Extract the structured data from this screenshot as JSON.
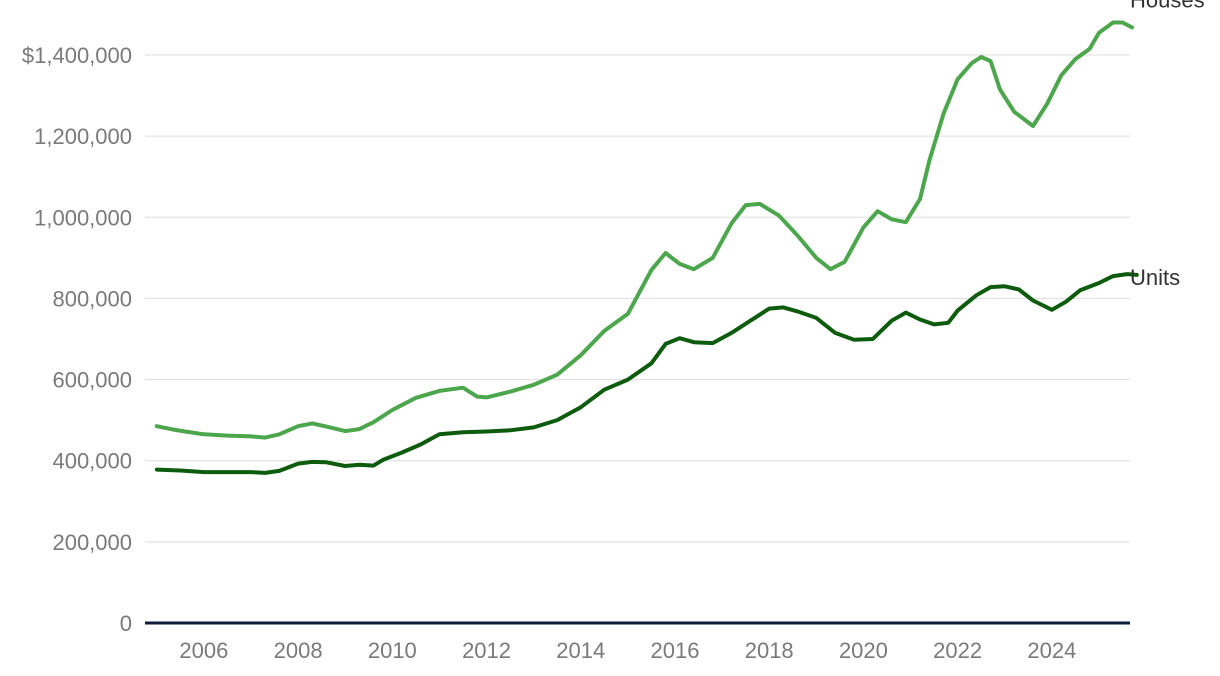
{
  "chart_data": {
    "type": "line",
    "title": "",
    "xlabel": "",
    "ylabel": "",
    "xlim": [
      2004.7,
      2025.2
    ],
    "ylim": [
      0,
      1400000
    ],
    "y_ticks": [
      0,
      200000,
      400000,
      600000,
      800000,
      1000000,
      1200000,
      1400000
    ],
    "y_tick_labels": [
      "0",
      "200,000",
      "400,000",
      "600,000",
      "800,000",
      "1,000,000",
      "1,200,000",
      "$1,400,000"
    ],
    "x_ticks": [
      2006,
      2008,
      2010,
      2012,
      2014,
      2016,
      2018,
      2020,
      2022,
      2024
    ],
    "x_tick_labels": [
      "2006",
      "2008",
      "2010",
      "2012",
      "2014",
      "2016",
      "2018",
      "2020",
      "2022",
      "2024"
    ],
    "grid": true,
    "legend": "direct labels at line ends",
    "series": [
      {
        "name": "Houses",
        "color": "#4ca64c",
        "points": [
          [
            2005.0,
            485000
          ],
          [
            2005.3,
            478000
          ],
          [
            2005.6,
            472000
          ],
          [
            2006.0,
            465000
          ],
          [
            2006.5,
            462000
          ],
          [
            2007.0,
            460000
          ],
          [
            2007.3,
            457000
          ],
          [
            2007.6,
            465000
          ],
          [
            2008.0,
            485000
          ],
          [
            2008.3,
            492000
          ],
          [
            2008.6,
            484000
          ],
          [
            2009.0,
            473000
          ],
          [
            2009.3,
            478000
          ],
          [
            2009.6,
            495000
          ],
          [
            2010.0,
            525000
          ],
          [
            2010.5,
            555000
          ],
          [
            2011.0,
            572000
          ],
          [
            2011.5,
            580000
          ],
          [
            2011.8,
            558000
          ],
          [
            2012.0,
            556000
          ],
          [
            2012.5,
            570000
          ],
          [
            2013.0,
            587000
          ],
          [
            2013.5,
            612000
          ],
          [
            2014.0,
            660000
          ],
          [
            2014.5,
            720000
          ],
          [
            2015.0,
            762000
          ],
          [
            2015.5,
            870000
          ],
          [
            2015.8,
            912000
          ],
          [
            2016.1,
            885000
          ],
          [
            2016.4,
            872000
          ],
          [
            2016.8,
            900000
          ],
          [
            2017.2,
            985000
          ],
          [
            2017.5,
            1030000
          ],
          [
            2017.8,
            1033000
          ],
          [
            2018.2,
            1005000
          ],
          [
            2018.6,
            955000
          ],
          [
            2019.0,
            900000
          ],
          [
            2019.3,
            872000
          ],
          [
            2019.6,
            890000
          ],
          [
            2020.0,
            975000
          ],
          [
            2020.3,
            1015000
          ],
          [
            2020.6,
            995000
          ],
          [
            2020.9,
            988000
          ],
          [
            2021.2,
            1045000
          ],
          [
            2021.4,
            1140000
          ],
          [
            2021.7,
            1255000
          ],
          [
            2022.0,
            1340000
          ],
          [
            2022.3,
            1380000
          ],
          [
            2022.5,
            1395000
          ],
          [
            2022.7,
            1385000
          ],
          [
            2022.9,
            1315000
          ],
          [
            2023.2,
            1260000
          ],
          [
            2023.6,
            1225000
          ],
          [
            2023.9,
            1280000
          ],
          [
            2024.2,
            1350000
          ],
          [
            2024.5,
            1390000
          ],
          [
            2024.8,
            1415000
          ],
          [
            2025.0,
            1455000
          ],
          [
            2025.3,
            1480000
          ],
          [
            2025.5,
            1480000
          ],
          [
            2025.7,
            1468000
          ]
        ]
      },
      {
        "name": "Units",
        "color": "#0d5c0d",
        "points": [
          [
            2005.0,
            378000
          ],
          [
            2005.5,
            376000
          ],
          [
            2006.0,
            372000
          ],
          [
            2006.5,
            372000
          ],
          [
            2007.0,
            372000
          ],
          [
            2007.3,
            370000
          ],
          [
            2007.6,
            375000
          ],
          [
            2008.0,
            393000
          ],
          [
            2008.3,
            397000
          ],
          [
            2008.6,
            396000
          ],
          [
            2009.0,
            387000
          ],
          [
            2009.3,
            390000
          ],
          [
            2009.6,
            388000
          ],
          [
            2009.8,
            402000
          ],
          [
            2010.2,
            420000
          ],
          [
            2010.6,
            440000
          ],
          [
            2011.0,
            465000
          ],
          [
            2011.5,
            470000
          ],
          [
            2012.0,
            472000
          ],
          [
            2012.5,
            475000
          ],
          [
            2013.0,
            482000
          ],
          [
            2013.5,
            500000
          ],
          [
            2014.0,
            532000
          ],
          [
            2014.5,
            575000
          ],
          [
            2015.0,
            600000
          ],
          [
            2015.5,
            640000
          ],
          [
            2015.8,
            688000
          ],
          [
            2016.1,
            702000
          ],
          [
            2016.4,
            692000
          ],
          [
            2016.8,
            690000
          ],
          [
            2017.2,
            715000
          ],
          [
            2017.6,
            745000
          ],
          [
            2018.0,
            775000
          ],
          [
            2018.3,
            778000
          ],
          [
            2018.6,
            768000
          ],
          [
            2019.0,
            752000
          ],
          [
            2019.4,
            715000
          ],
          [
            2019.8,
            698000
          ],
          [
            2020.2,
            700000
          ],
          [
            2020.6,
            745000
          ],
          [
            2020.9,
            765000
          ],
          [
            2021.2,
            748000
          ],
          [
            2021.5,
            736000
          ],
          [
            2021.8,
            740000
          ],
          [
            2022.0,
            770000
          ],
          [
            2022.4,
            808000
          ],
          [
            2022.7,
            828000
          ],
          [
            2023.0,
            830000
          ],
          [
            2023.3,
            822000
          ],
          [
            2023.6,
            795000
          ],
          [
            2024.0,
            772000
          ],
          [
            2024.3,
            792000
          ],
          [
            2024.6,
            820000
          ],
          [
            2025.0,
            838000
          ],
          [
            2025.3,
            855000
          ],
          [
            2025.6,
            860000
          ],
          [
            2025.8,
            858000
          ]
        ]
      }
    ]
  }
}
